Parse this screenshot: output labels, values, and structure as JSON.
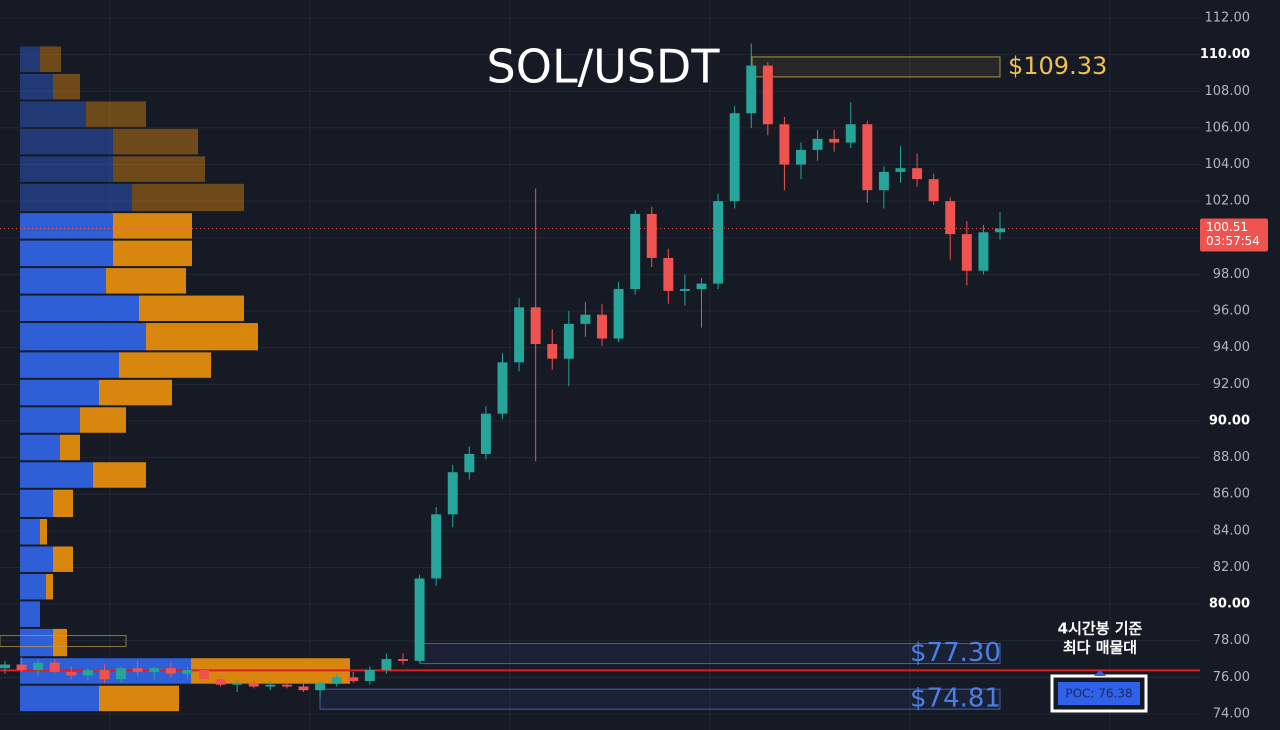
{
  "chart_data": {
    "type": "candlestick",
    "title": "SOL/USDT",
    "ylim": [
      74,
      112
    ],
    "yticks": [
      {
        "value": 74,
        "label": "74.00"
      },
      {
        "value": 76,
        "label": "76.00"
      },
      {
        "value": 78,
        "label": "78.00"
      },
      {
        "value": 80,
        "label": "80.00"
      },
      {
        "value": 82,
        "label": "82.00"
      },
      {
        "value": 84,
        "label": "84.00"
      },
      {
        "value": 86,
        "label": "86.00"
      },
      {
        "value": 88,
        "label": "88.00"
      },
      {
        "value": 90,
        "label": "90.00"
      },
      {
        "value": 92,
        "label": "92.00"
      },
      {
        "value": 94,
        "label": "94.00"
      },
      {
        "value": 96,
        "label": "96.00"
      },
      {
        "value": 98,
        "label": "98.00"
      },
      {
        "value": 100,
        "label": "100.00"
      },
      {
        "value": 102,
        "label": "102.00"
      },
      {
        "value": 104,
        "label": "104.00"
      },
      {
        "value": 106,
        "label": "106.00"
      },
      {
        "value": 108,
        "label": "108.00"
      },
      {
        "value": 110,
        "label": "110.00"
      },
      {
        "value": 112,
        "label": "112.00"
      }
    ],
    "grid": true,
    "up_color": "#26a69a",
    "down_color": "#ef5350",
    "open": [
      76.5,
      76.7,
      76.4,
      76.8,
      76.3,
      76.1,
      76.4,
      75.9,
      76.5,
      76.3,
      76.5,
      76.2,
      76.4,
      75.9,
      75.6,
      75.7,
      75.5,
      75.6,
      75.5,
      75.3,
      75.7,
      76.0,
      75.8,
      76.4,
      77.0,
      76.9,
      81.4,
      84.9,
      87.2,
      88.2,
      90.4,
      93.2,
      96.2,
      94.2,
      93.4,
      95.3,
      95.8,
      94.5,
      97.2,
      101.3,
      98.9,
      97.1,
      97.2,
      97.5,
      102.0,
      106.8,
      109.4,
      106.2,
      104.0,
      104.8,
      105.4,
      105.2,
      106.2,
      102.6,
      103.6,
      103.8,
      103.2,
      102.0,
      100.2,
      98.2,
      100.3
    ],
    "high": [
      76.9,
      77.1,
      77.0,
      77.0,
      76.6,
      76.5,
      76.7,
      76.6,
      76.9,
      76.6,
      76.8,
      76.6,
      76.6,
      76.1,
      75.9,
      75.9,
      75.8,
      75.8,
      75.7,
      75.8,
      76.2,
      76.3,
      76.6,
      77.3,
      77.3,
      81.6,
      85.3,
      87.6,
      88.6,
      90.8,
      93.7,
      96.7,
      102.7,
      95.0,
      96.0,
      96.5,
      96.4,
      97.6,
      101.5,
      101.7,
      99.4,
      98.0,
      97.8,
      102.4,
      107.2,
      110.6,
      109.6,
      106.6,
      105.2,
      105.9,
      105.9,
      107.4,
      106.4,
      103.9,
      105.0,
      104.6,
      103.5,
      102.2,
      100.9,
      100.7,
      101.4
    ],
    "low": [
      76.2,
      76.3,
      76.1,
      76.2,
      75.9,
      75.8,
      75.7,
      75.7,
      76.1,
      75.9,
      76.0,
      75.9,
      75.8,
      75.5,
      75.2,
      75.4,
      75.3,
      75.4,
      75.2,
      74.9,
      75.5,
      75.7,
      75.6,
      76.2,
      76.7,
      76.8,
      81.0,
      84.2,
      86.8,
      87.9,
      90.1,
      92.7,
      87.8,
      92.8,
      91.9,
      94.6,
      94.1,
      94.3,
      96.9,
      98.4,
      96.4,
      96.3,
      95.1,
      97.2,
      101.6,
      106.0,
      105.6,
      102.6,
      103.2,
      104.2,
      104.7,
      104.9,
      101.9,
      101.6,
      103.0,
      102.8,
      101.8,
      98.8,
      97.4,
      98.0,
      99.9
    ],
    "close": [
      76.7,
      76.4,
      76.8,
      76.3,
      76.1,
      76.4,
      75.9,
      76.5,
      76.3,
      76.5,
      76.2,
      76.4,
      75.9,
      75.6,
      75.7,
      75.5,
      75.6,
      75.5,
      75.3,
      75.7,
      76.0,
      75.8,
      76.4,
      77.0,
      76.9,
      81.4,
      84.9,
      87.2,
      88.2,
      90.4,
      93.2,
      96.2,
      94.2,
      93.4,
      95.3,
      95.8,
      94.5,
      97.2,
      101.3,
      98.9,
      97.1,
      97.2,
      97.5,
      102.0,
      106.8,
      109.4,
      106.2,
      104.0,
      104.8,
      105.4,
      105.2,
      106.2,
      102.6,
      103.6,
      103.8,
      103.2,
      102.0,
      100.2,
      98.2,
      100.3,
      100.51
    ],
    "current_price": 100.51,
    "countdown": "03:57:54",
    "volume_profile": {
      "bins": [
        74.1,
        75.6,
        77.1,
        78.7,
        80.2,
        81.7,
        83.2,
        84.7,
        86.3,
        87.8,
        89.3,
        90.8,
        92.3,
        93.8,
        95.4,
        96.9,
        98.4,
        99.9,
        101.4,
        103.0,
        104.5,
        106.0,
        107.5,
        109.0,
        110.5
      ],
      "buy": [
        79,
        171,
        33,
        20,
        26,
        33,
        20,
        33,
        73,
        40,
        60,
        79,
        99,
        126,
        119,
        86,
        93,
        93,
        112,
        93,
        93,
        66,
        33,
        20
      ],
      "sell": [
        80,
        159,
        14,
        0,
        7,
        20,
        7,
        20,
        53,
        20,
        46,
        73,
        92,
        112,
        105,
        80,
        79,
        79,
        112,
        92,
        85,
        60,
        27,
        21
      ],
      "buy_color": "#2f5fd6",
      "sell_color": "#d9860f"
    },
    "levels": [
      {
        "value": 109.33,
        "label": "$109.33",
        "color": "#f0c24b"
      },
      {
        "value": 77.3,
        "label": "$77.30",
        "color": "#4d7fe8"
      },
      {
        "value": 74.81,
        "label": "$74.81",
        "color": "#4d7fe8"
      }
    ],
    "poc": {
      "value": 76.38,
      "label": "POC: 76.38",
      "note": [
        "4시간봉 기준",
        "최다 매물대"
      ],
      "color": "#e01e1e"
    }
  }
}
